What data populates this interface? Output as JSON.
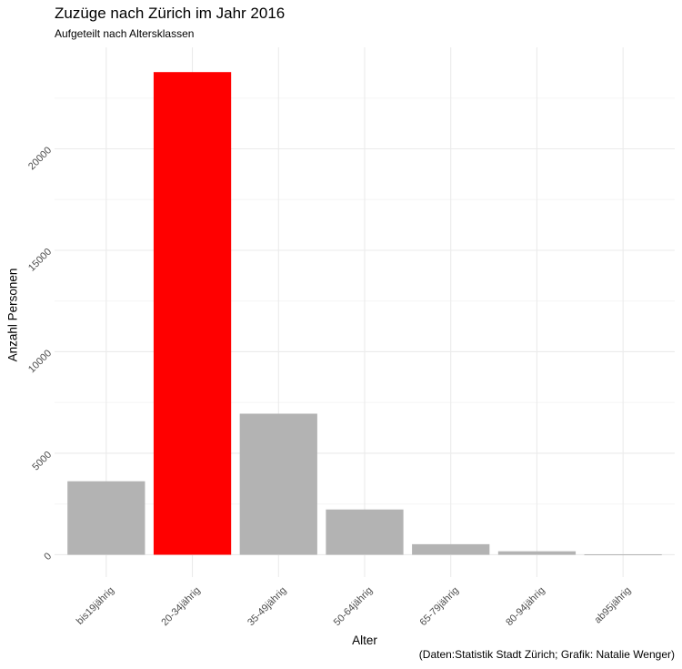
{
  "chart_data": {
    "type": "bar",
    "title": "Zuzüge nach Zürich im Jahr 2016",
    "subtitle": "Aufgeteilt nach Altersklassen",
    "xlabel": "Alter",
    "ylabel": "Anzahl Personen",
    "caption": "(Daten:Statistik Stadt Zürich; Grafik: Natalie Wenger)",
    "categories": [
      "bis19jährig",
      "20-34jährig",
      "35-49jährig",
      "50-64jährig",
      "65-79jährig",
      "80-94jährig",
      "ab95jährig"
    ],
    "values": [
      3620,
      23780,
      6950,
      2230,
      520,
      170,
      20
    ],
    "yticks": [
      0,
      5000,
      10000,
      15000,
      20000
    ],
    "ylim": [
      -1100,
      25000
    ],
    "grid": true,
    "legend": "none",
    "colors": {
      "default_bar": "#b3b3b3",
      "highlight_bar": "#ff0000",
      "grid_major": "#ebebeb",
      "grid_minor": "#f5f5f5"
    },
    "highlight_index": 1
  }
}
